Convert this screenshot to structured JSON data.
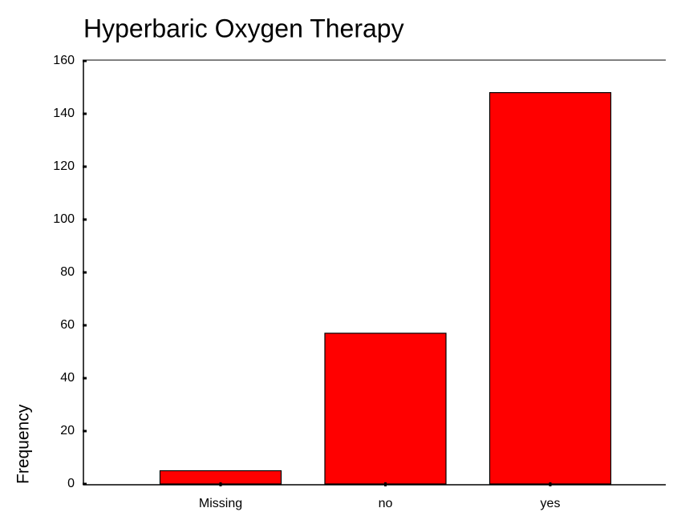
{
  "chart_data": {
    "type": "bar",
    "title": "Hyperbaric Oxygen Therapy",
    "y_label": "Frequency",
    "categories": [
      "Missing",
      "no",
      "yes"
    ],
    "values": [
      5,
      57,
      148
    ],
    "color": "#ff0000",
    "ylim": [
      0,
      160
    ],
    "yticks": [
      0,
      20,
      40,
      60,
      80,
      100,
      120,
      140,
      160
    ],
    "grid": false
  }
}
